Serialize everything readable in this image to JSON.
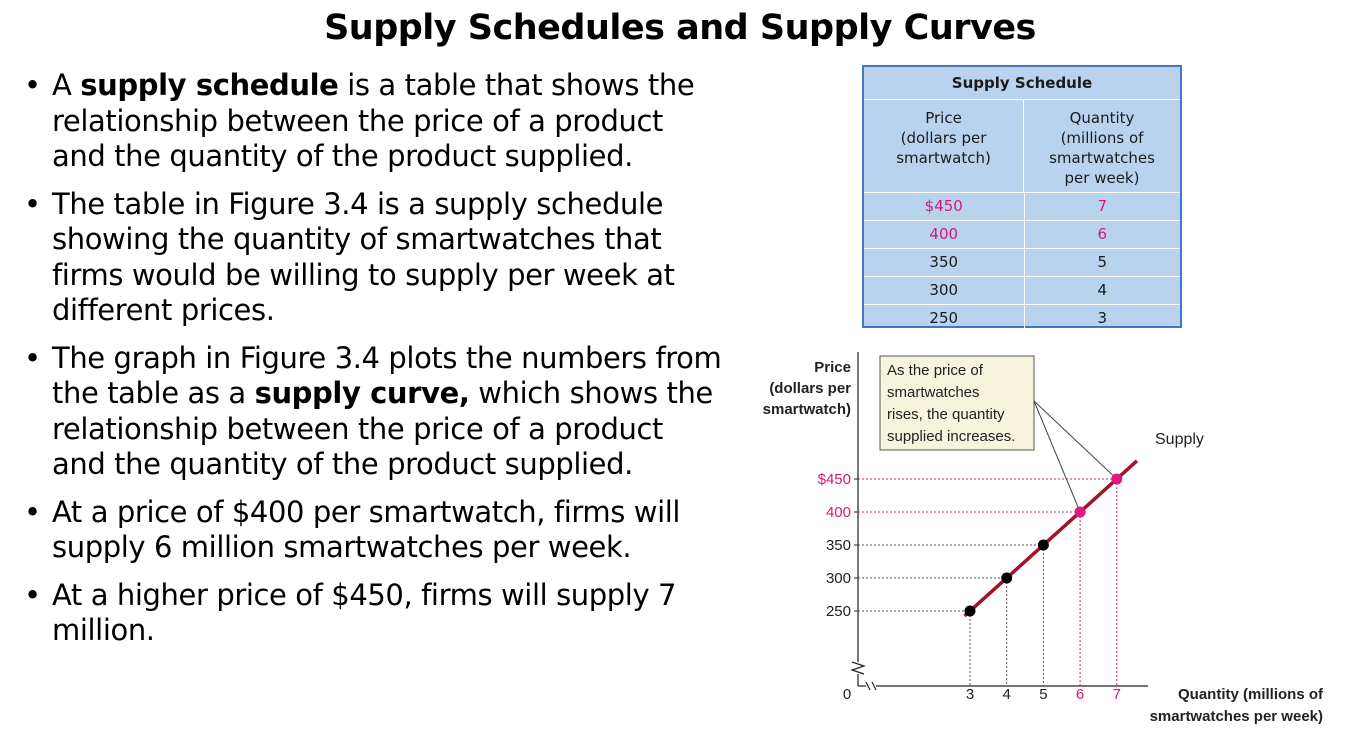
{
  "slide": {
    "title": "Supply Schedules and Supply Curves",
    "bullets": [
      {
        "parts": [
          "A ",
          "supply schedule",
          " is a table that shows the relationship between the price of a product and  the quantity of the product supplied."
        ]
      },
      {
        "parts": [
          "The table in Figure 3.4 is a supply schedule showing  the quantity of smartwatches that firms would be willing to supply per week at different prices."
        ]
      },
      {
        "parts": [
          "The graph in Figure 3.4 plots the numbers from the table as a ",
          "supply curve,",
          " which shows the relationship between the price of a product and the quantity of the product supplied."
        ]
      },
      {
        "parts": [
          "At a price of $400 per smartwatch, firms will supply 6 million smartwatches per week."
        ]
      },
      {
        "parts": [
          "At a higher price of $450, firms will supply 7 million."
        ]
      }
    ]
  },
  "schedule": {
    "caption": "Supply Schedule",
    "col_price": [
      "Price",
      "(dollars per",
      "smartwatch)"
    ],
    "col_quantity": [
      "Quantity",
      "(millions of",
      "smartwatches",
      "per week)"
    ],
    "rows": [
      {
        "price": "$450",
        "quantity": "7",
        "highlight": true
      },
      {
        "price": "400",
        "quantity": "6",
        "highlight": true
      },
      {
        "price": "350",
        "quantity": "5",
        "highlight": false
      },
      {
        "price": "300",
        "quantity": "4",
        "highlight": false
      },
      {
        "price": "250",
        "quantity": "3",
        "highlight": false
      }
    ],
    "colors": {
      "background": "#b9d3ef",
      "border": "#3d79c4",
      "highlight": "#d4187a"
    }
  },
  "chart_data": {
    "type": "line",
    "ylabel": [
      "Price",
      "(dollars per",
      "smartwatch)"
    ],
    "xlabel": [
      "Quantity (millions of",
      "smartwatches per week)"
    ],
    "origin_label": "0",
    "y_ticks": [
      "$450",
      "400",
      "350",
      "300",
      "250"
    ],
    "x_ticks": [
      "3",
      "4",
      "5",
      "6",
      "7"
    ],
    "series": [
      {
        "name": "Supply",
        "x": [
          3,
          4,
          5,
          6,
          7
        ],
        "y": [
          250,
          300,
          350,
          400,
          450
        ],
        "highlight": [
          false,
          false,
          false,
          true,
          true
        ]
      }
    ],
    "annotation": [
      "As the price of",
      "smartwatches",
      "rises, the quantity",
      "supplied increases."
    ],
    "colors": {
      "line": "#a3122b",
      "point": "#000000",
      "highlight": "#e0187f"
    }
  }
}
